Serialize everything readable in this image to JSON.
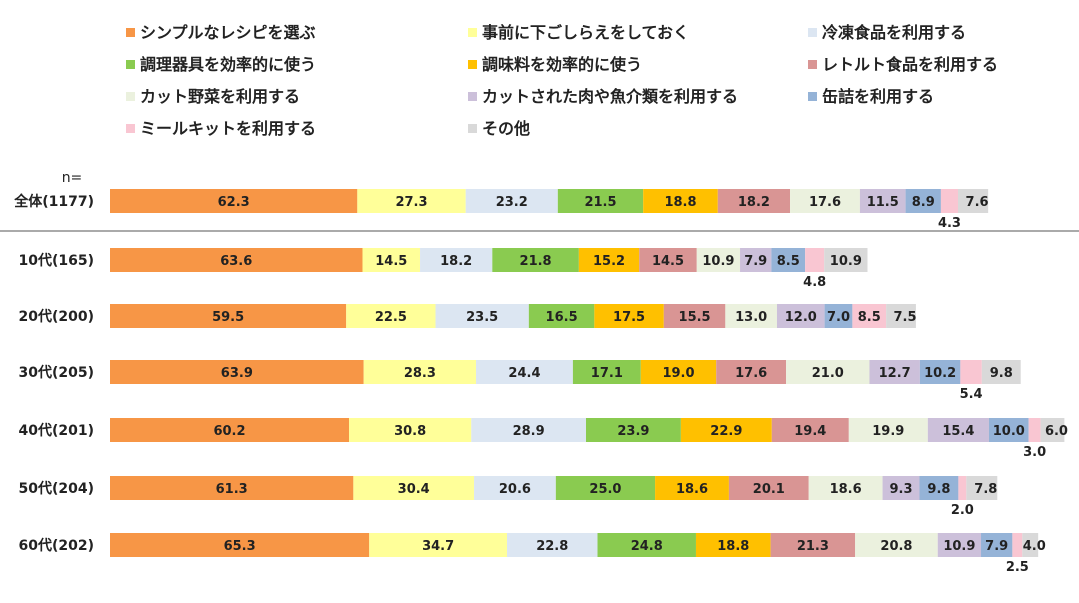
{
  "chart_data": {
    "type": "bar",
    "stacked": true,
    "orientation": "horizontal",
    "n_label": "n=",
    "legend_position": "top",
    "categories": [
      "全体(1177)",
      "10代(165)",
      "20代(200)",
      "30代(205)",
      "40代(201)",
      "50代(204)",
      "60代(202)"
    ],
    "series": [
      {
        "name": "シンプルなレシピを選ぶ",
        "color": "#F79646",
        "values": [
          62.3,
          63.6,
          59.5,
          63.9,
          60.2,
          61.3,
          65.3
        ]
      },
      {
        "name": "事前に下ごしらえをしておく",
        "color": "#FFFF99",
        "values": [
          27.3,
          14.5,
          22.5,
          28.3,
          30.8,
          30.4,
          34.7
        ]
      },
      {
        "name": "冷凍食品を利用する",
        "color": "#DCE6F2",
        "values": [
          23.2,
          18.2,
          23.5,
          24.4,
          28.9,
          20.6,
          22.8
        ]
      },
      {
        "name": "調理器具を効率的に使う",
        "color": "#8ACB50",
        "values": [
          21.5,
          21.8,
          16.5,
          17.1,
          23.9,
          25.0,
          24.8
        ]
      },
      {
        "name": "調味料を効率的に使う",
        "color": "#FFC000",
        "values": [
          18.8,
          15.2,
          17.5,
          19.0,
          22.9,
          18.6,
          18.8
        ]
      },
      {
        "name": "レトルト食品を利用する",
        "color": "#D99594",
        "values": [
          18.2,
          14.5,
          15.5,
          17.6,
          19.4,
          20.1,
          21.3
        ]
      },
      {
        "name": "カット野菜を利用する",
        "color": "#EBF1DE",
        "values": [
          17.6,
          10.9,
          13.0,
          21.0,
          19.9,
          18.6,
          20.8
        ]
      },
      {
        "name": "カットされた肉や魚介類を利用する",
        "color": "#CCC0DA",
        "values": [
          11.5,
          7.9,
          12.0,
          12.7,
          15.4,
          9.3,
          10.9
        ]
      },
      {
        "name": "缶詰を利用する",
        "color": "#95B3D7",
        "values": [
          8.9,
          8.5,
          7.0,
          10.2,
          10.0,
          9.8,
          7.9
        ]
      },
      {
        "name": "ミールキットを利用する",
        "color": "#F9C6D2",
        "values": [
          4.3,
          4.8,
          8.5,
          5.4,
          3.0,
          2.0,
          2.5
        ]
      },
      {
        "name": "その他",
        "color": "#D9D9D9",
        "values": [
          7.6,
          10.9,
          7.5,
          9.8,
          6.0,
          7.8,
          4.0
        ]
      }
    ],
    "value_labels": [
      [
        "62.3",
        "27.3",
        "23.2",
        "21.5",
        "18.8",
        "18.2",
        "17.6",
        "11.5",
        "8.9",
        "4.3",
        "7.6"
      ],
      [
        "63.6",
        "14.5",
        "18.2",
        "21.8",
        "15.2",
        "14.5",
        "10.9",
        "7.9",
        "8.5",
        "4.8",
        "10.9"
      ],
      [
        "59.5",
        "22.5",
        "23.5",
        "16.5",
        "17.5",
        "15.5",
        "13.0",
        "12.0",
        "7.0",
        "8.5",
        "7.5"
      ],
      [
        "63.9",
        "28.3",
        "24.4",
        "17.1",
        "19.0",
        "17.6",
        "21.0",
        "12.7",
        "10.2",
        "5.4",
        "9.8"
      ],
      [
        "60.2",
        "30.8",
        "28.9",
        "23.9",
        "22.9",
        "19.4",
        "19.9",
        "15.4",
        "10.0",
        "3.0",
        "6.0"
      ],
      [
        "61.3",
        "30.4",
        "20.6",
        "25.0",
        "18.6",
        "20.1",
        "18.6",
        "9.3",
        "9.8",
        "2.0",
        "7.8"
      ],
      [
        "65.3",
        "34.7",
        "22.8",
        "24.8",
        "18.8",
        "21.3",
        "20.8",
        "10.9",
        "7.9",
        "2.5",
        "4.0"
      ]
    ]
  }
}
